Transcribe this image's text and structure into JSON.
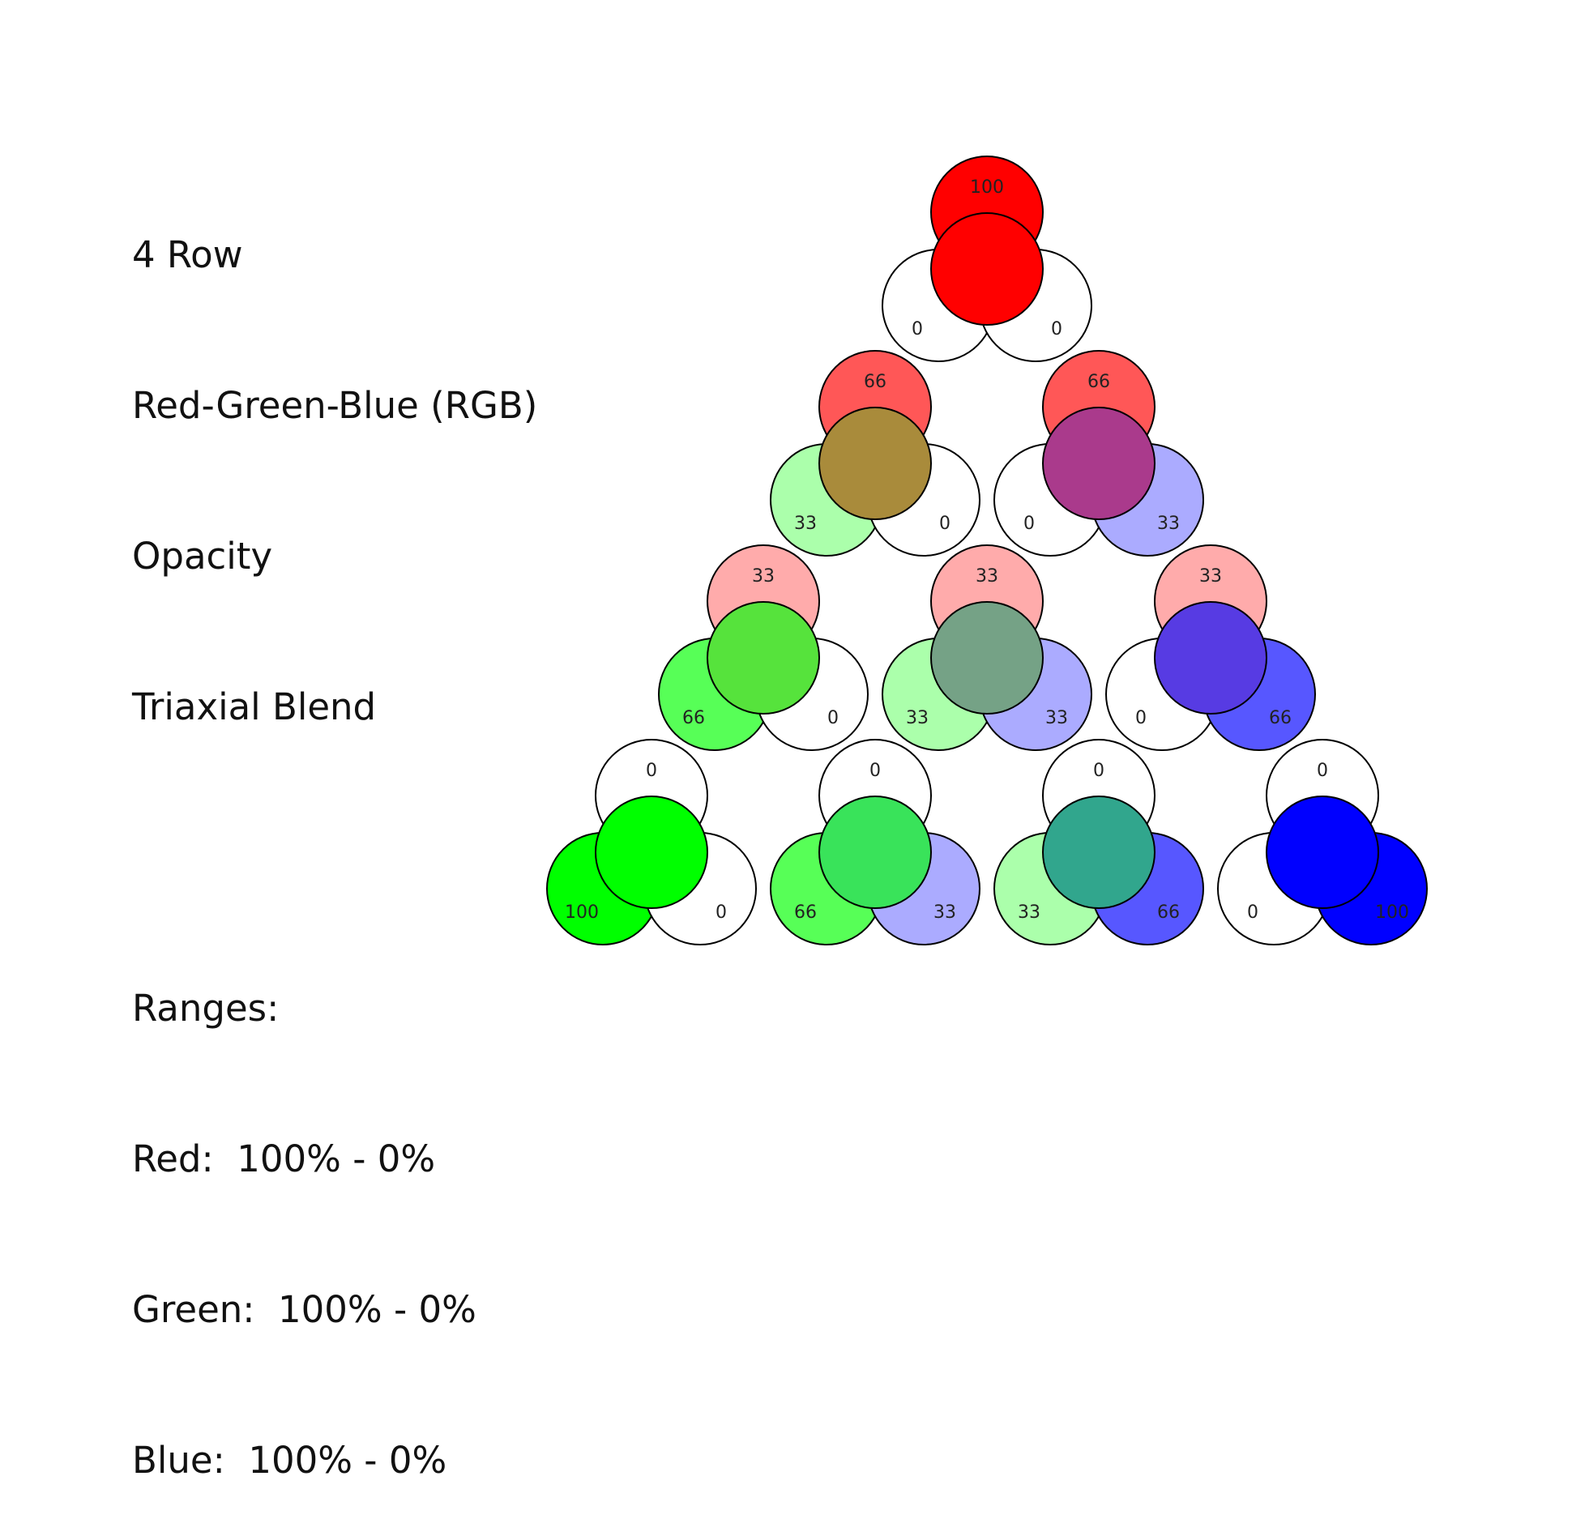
{
  "legend": {
    "line1": "4 Row",
    "line2": "Red-Green-Blue (RGB)",
    "line3": "Opacity",
    "line4": "Triaxial Blend",
    "line5": "",
    "line6": "Ranges:",
    "line7": "Red:  100% - 0%",
    "line8": "Green:  100% - 0%",
    "line9": "Blue:  100% - 0%"
  },
  "colors": {
    "red": "#ff0000",
    "green": "#00ff00",
    "blue": "#0000ff",
    "outline": "#000000",
    "background": "#ffffff"
  },
  "nodes": [
    {
      "row": 0,
      "col": 0,
      "red": 100,
      "green": 0,
      "blue": 0,
      "blend": "#ff0000"
    },
    {
      "row": 1,
      "col": 0,
      "red": 66,
      "green": 33,
      "blue": 0,
      "blend": "#a98b3b"
    },
    {
      "row": 1,
      "col": 1,
      "red": 66,
      "green": 0,
      "blue": 33,
      "blend": "#aa3a8c"
    },
    {
      "row": 2,
      "col": 0,
      "red": 33,
      "green": 66,
      "blue": 0,
      "blend": "#56e33c"
    },
    {
      "row": 2,
      "col": 1,
      "red": 33,
      "green": 33,
      "blue": 33,
      "blend": "#75a286"
    },
    {
      "row": 2,
      "col": 2,
      "red": 33,
      "green": 0,
      "blue": 66,
      "blend": "#573be3"
    },
    {
      "row": 3,
      "col": 0,
      "red": 0,
      "green": 100,
      "blue": 0,
      "blend": "#00ff00"
    },
    {
      "row": 3,
      "col": 1,
      "red": 0,
      "green": 66,
      "blue": 33,
      "blend": "#39e35a"
    },
    {
      "row": 3,
      "col": 2,
      "red": 0,
      "green": 33,
      "blue": 66,
      "blend": "#31a68d"
    },
    {
      "row": 3,
      "col": 3,
      "red": 0,
      "green": 0,
      "blue": 100,
      "blend": "#0000ff"
    }
  ]
}
